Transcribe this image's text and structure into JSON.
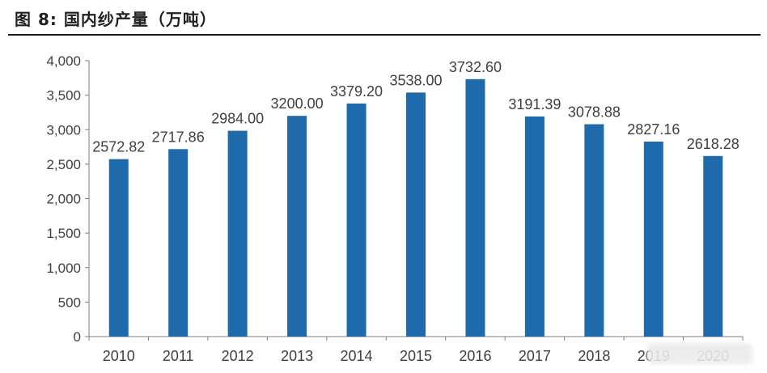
{
  "title": "图 8: 国内纱产量（万吨）",
  "colors": {
    "bar": "#1f6aab",
    "axis": "#7f7f7f",
    "text": "#3f3f3f"
  },
  "chart_data": {
    "type": "bar",
    "title": "国内纱产量（万吨）",
    "categories": [
      "2010",
      "2011",
      "2012",
      "2013",
      "2014",
      "2015",
      "2016",
      "2017",
      "2018",
      "2019",
      "2020"
    ],
    "series": [
      {
        "values": [
          2572.82,
          2717.86,
          2984.0,
          3200.0,
          3379.2,
          3538.0,
          3732.6,
          3191.39,
          3078.88,
          2827.16,
          2618.28
        ]
      }
    ],
    "data_labels": [
      "2572.82",
      "2717.86",
      "2984.00",
      "3200.00",
      "3379.20",
      "3538.00",
      "3732.60",
      "3191.39",
      "3078.88",
      "2827.16",
      "2618.28"
    ],
    "y_ticks": [
      0,
      500,
      1000,
      1500,
      2000,
      2500,
      3000,
      3500,
      4000
    ],
    "y_tick_labels": [
      "0",
      "500",
      "1,000",
      "1,500",
      "2,000",
      "2,500",
      "3,000",
      "3,500",
      "4,000"
    ],
    "ylim": [
      0,
      4000
    ],
    "grid": false,
    "legend": "none"
  }
}
